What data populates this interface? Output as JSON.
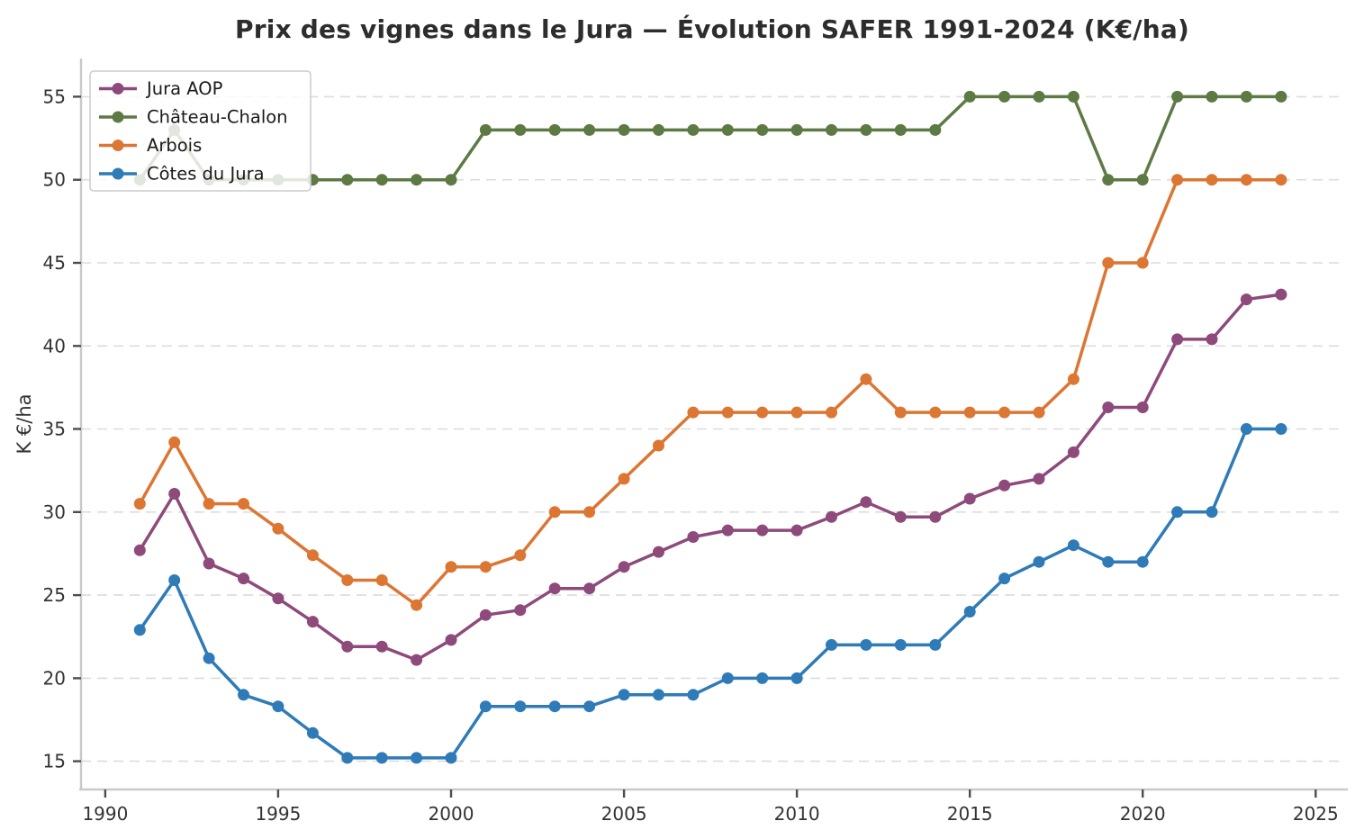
{
  "chart_data": {
    "type": "line",
    "title": "Prix des vignes dans le Jura — Évolution SAFER 1991-2024 (K€/ha)",
    "xlabel": "",
    "ylabel": "K €/ha",
    "x": [
      1991,
      1992,
      1993,
      1994,
      1995,
      1996,
      1997,
      1998,
      1999,
      2000,
      2001,
      2002,
      2003,
      2004,
      2005,
      2006,
      2007,
      2008,
      2009,
      2010,
      2011,
      2012,
      2013,
      2014,
      2015,
      2016,
      2017,
      2018,
      2019,
      2020,
      2021,
      2022,
      2023,
      2024
    ],
    "series": [
      {
        "name": "Jura AOP",
        "color": "#8d4a7b",
        "values": [
          27.7,
          31.1,
          26.9,
          26.0,
          24.8,
          23.4,
          21.9,
          21.9,
          21.1,
          22.3,
          23.8,
          24.1,
          25.4,
          25.4,
          26.7,
          27.6,
          28.5,
          28.9,
          28.9,
          28.9,
          29.7,
          30.6,
          29.7,
          29.7,
          30.8,
          31.6,
          32.0,
          33.6,
          36.3,
          36.3,
          40.4,
          40.4,
          42.8,
          43.1
        ]
      },
      {
        "name": "Château-Chalon",
        "color": "#5d7a44",
        "values": [
          50,
          53,
          50,
          50,
          50,
          50,
          50,
          50,
          50,
          50,
          53,
          53,
          53,
          53,
          53,
          53,
          53,
          53,
          53,
          53,
          53,
          53,
          53,
          53,
          55,
          55,
          55,
          55,
          50,
          50,
          55,
          55,
          55,
          55
        ]
      },
      {
        "name": "Arbois",
        "color": "#dc7633",
        "values": [
          30.5,
          34.2,
          30.5,
          30.5,
          29.0,
          27.4,
          25.9,
          25.9,
          24.4,
          26.7,
          26.7,
          27.4,
          30.0,
          30.0,
          32.0,
          34.0,
          36.0,
          36.0,
          36.0,
          36.0,
          36.0,
          38.0,
          36.0,
          36.0,
          36.0,
          36.0,
          36.0,
          38.0,
          45.0,
          45.0,
          50.0,
          50.0,
          50.0,
          50.0
        ]
      },
      {
        "name": "Côtes du Jura",
        "color": "#2e7bb8",
        "values": [
          22.9,
          25.9,
          21.2,
          19.0,
          18.3,
          16.7,
          15.2,
          15.2,
          15.2,
          15.2,
          18.3,
          18.3,
          18.3,
          18.3,
          19.0,
          19.0,
          19.0,
          20.0,
          20.0,
          20.0,
          22.0,
          22.0,
          22.0,
          22.0,
          24.0,
          26.0,
          27.0,
          28.0,
          27.0,
          27.0,
          30.0,
          30.0,
          35.0,
          35.0
        ]
      }
    ],
    "xticks": [
      1990,
      1995,
      2000,
      2005,
      2010,
      2015,
      2020,
      2025
    ],
    "yticks": [
      15,
      20,
      25,
      30,
      35,
      40,
      45,
      50,
      55
    ],
    "xlim": [
      1989.3,
      2025.8
    ],
    "ylim": [
      13.3,
      57.3
    ],
    "grid": "horizontal-dashed",
    "legend_position": "upper-left"
  },
  "style_colors": {
    "gridline": "#dcdcdc",
    "spine": "#c9c9c9",
    "tick_mark": "#4d4d4d",
    "tick_label": "#333333",
    "title": "#2d2d2d",
    "legend_border": "#cccccc",
    "legend_text": "#1a1a1a",
    "background": "#ffffff"
  }
}
